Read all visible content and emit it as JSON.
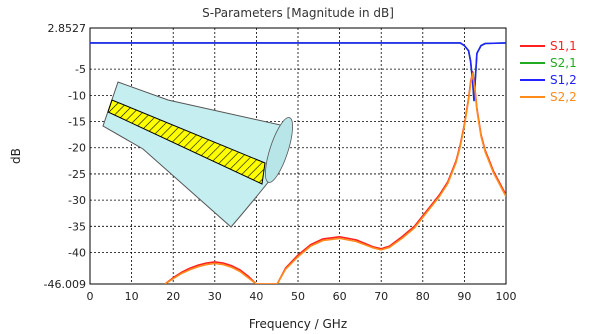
{
  "chart_data": {
    "type": "line",
    "title": "S-Parameters [Magnitude in dB]",
    "xlabel": "Frequency / GHz",
    "ylabel": "dB",
    "xlim": [
      0,
      100
    ],
    "ylim": [
      -46.009,
      2.8527
    ],
    "x_ticks": [
      0,
      10,
      20,
      30,
      40,
      50,
      60,
      70,
      80,
      90,
      100
    ],
    "y_ticks": [
      2.8527,
      -5,
      -10,
      -15,
      -20,
      -25,
      -30,
      -35,
      -40,
      -46.009
    ],
    "y_tick_labels": [
      "2.8527",
      "-5",
      "-10",
      "-15",
      "-20",
      "-25",
      "-30",
      "-35",
      "-40",
      "-46.009"
    ],
    "grid": true,
    "legend_position": "right",
    "series": [
      {
        "name": "S1,1",
        "color": "#ff2020",
        "x": [
          18,
          20,
          22,
          24,
          26,
          28,
          30,
          32,
          34,
          36,
          38,
          40,
          45,
          47,
          50,
          53,
          56,
          60,
          64,
          68,
          70,
          72,
          75,
          78,
          80,
          82,
          84,
          86,
          88,
          89,
          90,
          91,
          91.5,
          92,
          92.5,
          93,
          94,
          95,
          96,
          97,
          98,
          99,
          100
        ],
        "y": [
          -46.0,
          -44.8,
          -43.8,
          -43.0,
          -42.4,
          -42.0,
          -41.8,
          -42.0,
          -42.5,
          -43.3,
          -44.5,
          -46.0,
          -46.0,
          -43.0,
          -40.5,
          -38.5,
          -37.4,
          -37.0,
          -37.6,
          -38.9,
          -39.3,
          -38.8,
          -37.0,
          -35.0,
          -33.0,
          -31.0,
          -29.0,
          -26.5,
          -22.5,
          -19.5,
          -15.5,
          -10.5,
          -7.5,
          -5.5,
          -8.5,
          -12.5,
          -17.5,
          -20.5,
          -22.5,
          -24.5,
          -26.0,
          -27.5,
          -29.0
        ]
      },
      {
        "name": "S2,1",
        "color": "#22aa22",
        "x": [
          0,
          10,
          20,
          30,
          40,
          50,
          60,
          70,
          80,
          89,
          90,
          91,
          91.5,
          92,
          92.3,
          92.7,
          93,
          94,
          95,
          100
        ],
        "y": [
          0.0,
          0.0,
          0.0,
          0.0,
          0.0,
          0.0,
          0.0,
          0.0,
          0.0,
          0.0,
          -0.5,
          -1.5,
          -3.5,
          -7.5,
          -11.0,
          -6.0,
          -2.0,
          -0.5,
          -0.1,
          0.0
        ]
      },
      {
        "name": "S1,2",
        "color": "#2222ff",
        "x": [
          0,
          10,
          20,
          30,
          40,
          50,
          60,
          70,
          80,
          89,
          90,
          91,
          91.5,
          92,
          92.3,
          92.7,
          93,
          94,
          95,
          100
        ],
        "y": [
          0.0,
          0.0,
          0.0,
          0.0,
          0.0,
          0.0,
          0.0,
          0.0,
          0.0,
          0.0,
          -0.5,
          -1.5,
          -3.5,
          -7.5,
          -11.0,
          -6.0,
          -2.0,
          -0.5,
          -0.1,
          0.0
        ]
      },
      {
        "name": "S2,2",
        "color": "#ff8c1a",
        "x": [
          18,
          20,
          22,
          24,
          26,
          28,
          30,
          32,
          34,
          36,
          38,
          40,
          45,
          47,
          50,
          53,
          56,
          60,
          64,
          68,
          70,
          72,
          75,
          78,
          80,
          82,
          84,
          86,
          88,
          89,
          90,
          91,
          91.5,
          92,
          92.5,
          93,
          94,
          95,
          96,
          97,
          98,
          99,
          100
        ],
        "y": [
          -46.0,
          -45.0,
          -44.0,
          -43.3,
          -42.7,
          -42.3,
          -42.1,
          -42.3,
          -42.8,
          -43.6,
          -44.8,
          -46.0,
          -46.0,
          -43.2,
          -40.8,
          -38.8,
          -37.7,
          -37.3,
          -37.9,
          -39.1,
          -39.5,
          -39.0,
          -37.3,
          -35.3,
          -33.3,
          -31.3,
          -29.3,
          -26.8,
          -22.8,
          -19.8,
          -15.8,
          -10.8,
          -7.8,
          -5.8,
          -8.8,
          -12.8,
          -17.8,
          -20.8,
          -22.8,
          -24.8,
          -26.3,
          -27.8,
          -29.3
        ]
      }
    ]
  },
  "inset": {
    "shape": "tapered-coaxial-cross-section",
    "body_color": "#c5eef0",
    "strip_color": "#ffff00"
  }
}
